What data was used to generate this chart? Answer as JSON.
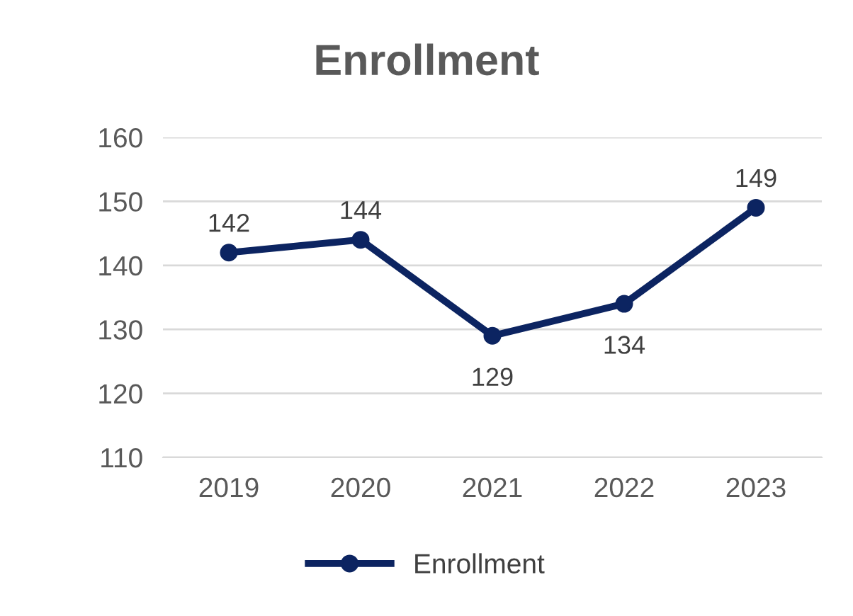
{
  "chart_data": {
    "type": "line",
    "title": "Enrollment",
    "categories": [
      "2019",
      "2020",
      "2021",
      "2022",
      "2023"
    ],
    "series": [
      {
        "name": "Enrollment",
        "color": "#0c2461",
        "values": [
          142,
          144,
          129,
          134,
          149
        ]
      }
    ],
    "ylim": [
      110,
      160
    ],
    "yticks": [
      110,
      120,
      130,
      140,
      150,
      160
    ],
    "grid": "y",
    "legend": "bottom",
    "marker": "circle",
    "line_style": "solid",
    "data_labels": true
  }
}
